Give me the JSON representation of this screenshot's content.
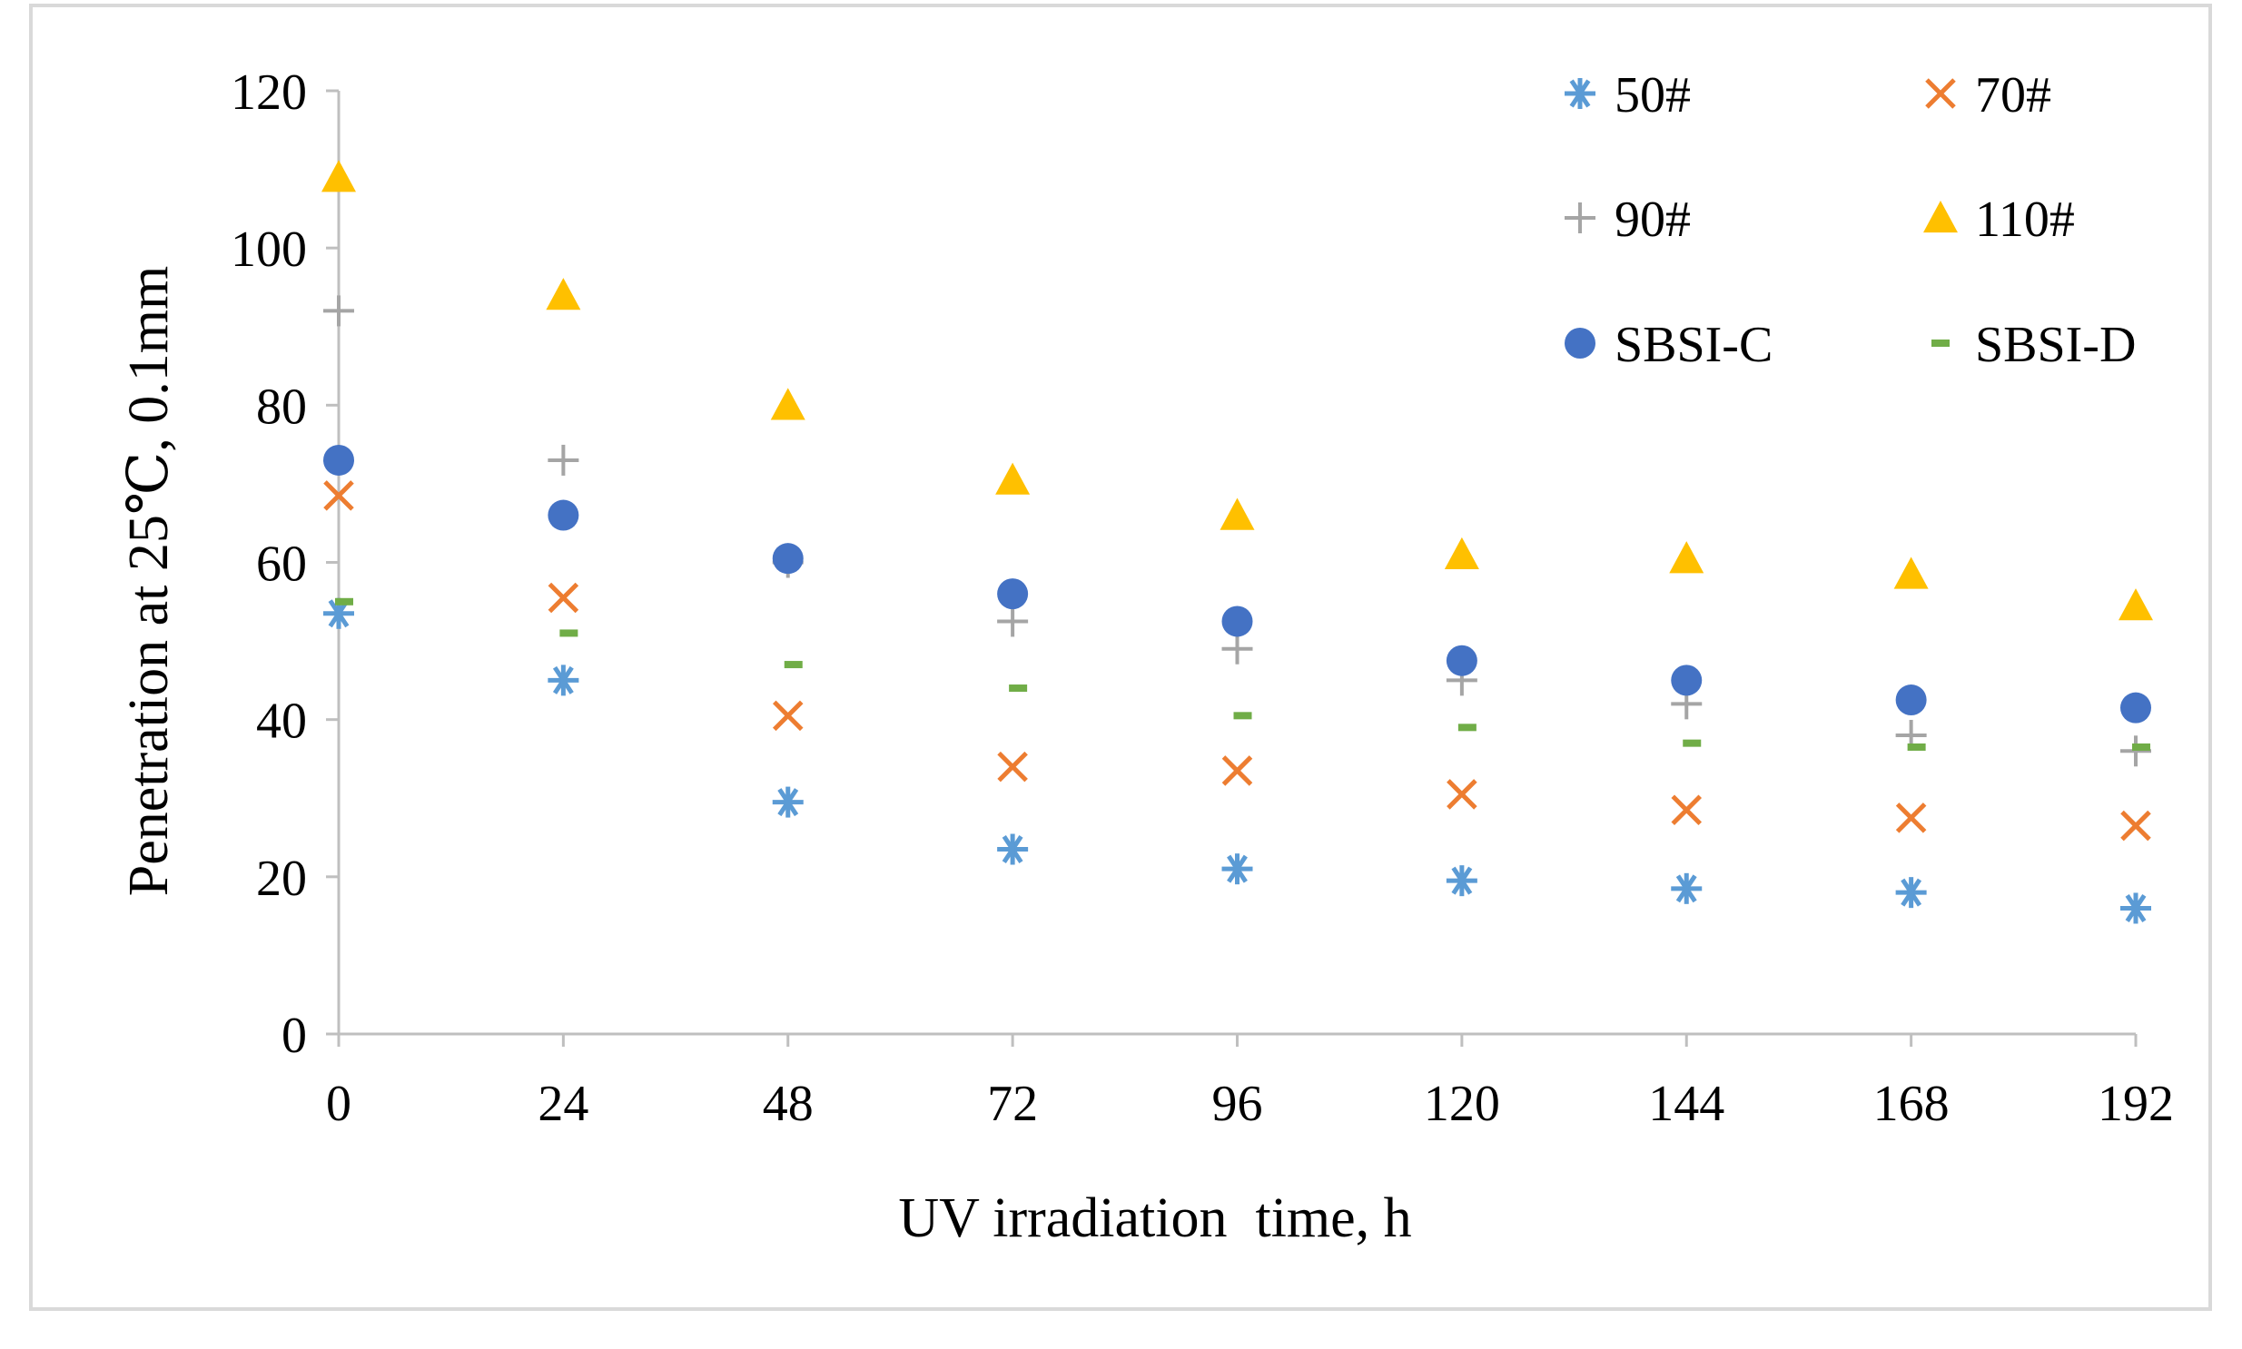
{
  "chart_data": {
    "type": "scatter",
    "xlabel": "UV irradiation  time, h",
    "ylabel": "Penetration at 25℃, 0.1mm",
    "x": [
      0,
      24,
      48,
      72,
      96,
      120,
      144,
      168,
      192
    ],
    "x_ticks": [
      "0",
      "24",
      "48",
      "72",
      "96",
      "120",
      "144",
      "168",
      "192"
    ],
    "y_ticks": [
      "0",
      "20",
      "40",
      "60",
      "80",
      "100",
      "120"
    ],
    "xlim": [
      0,
      192
    ],
    "ylim": [
      0,
      120
    ],
    "grid": false,
    "legend_position": "top-right",
    "series": [
      {
        "name": "50#",
        "marker": "asterisk",
        "color": "#5B9BD5",
        "values": [
          53.5,
          45,
          29.5,
          23.5,
          21,
          19.5,
          18.5,
          18,
          16
        ]
      },
      {
        "name": "70#",
        "marker": "x",
        "color": "#ED7D31",
        "values": [
          68.5,
          55.5,
          40.5,
          34,
          33.5,
          30.5,
          28.5,
          27.5,
          26.5
        ]
      },
      {
        "name": "90#",
        "marker": "plus",
        "color": "#A5A5A5",
        "values": [
          92,
          73,
          60,
          52.5,
          49,
          45,
          42,
          38,
          36
        ]
      },
      {
        "name": "110#",
        "marker": "triangle",
        "color": "#FFC000",
        "values": [
          109,
          94,
          80,
          70.5,
          66,
          61,
          60.5,
          58.5,
          54.5
        ]
      },
      {
        "name": "SBSI-C",
        "marker": "circle",
        "color": "#4472C4",
        "values": [
          73,
          66,
          60.5,
          56,
          52.5,
          47.5,
          45,
          42.5,
          41.5
        ]
      },
      {
        "name": "SBSI-D",
        "marker": "dash",
        "color": "#70AD47",
        "values": [
          55,
          51,
          47,
          44,
          40.5,
          39,
          37,
          36.5,
          36.5
        ]
      }
    ]
  }
}
